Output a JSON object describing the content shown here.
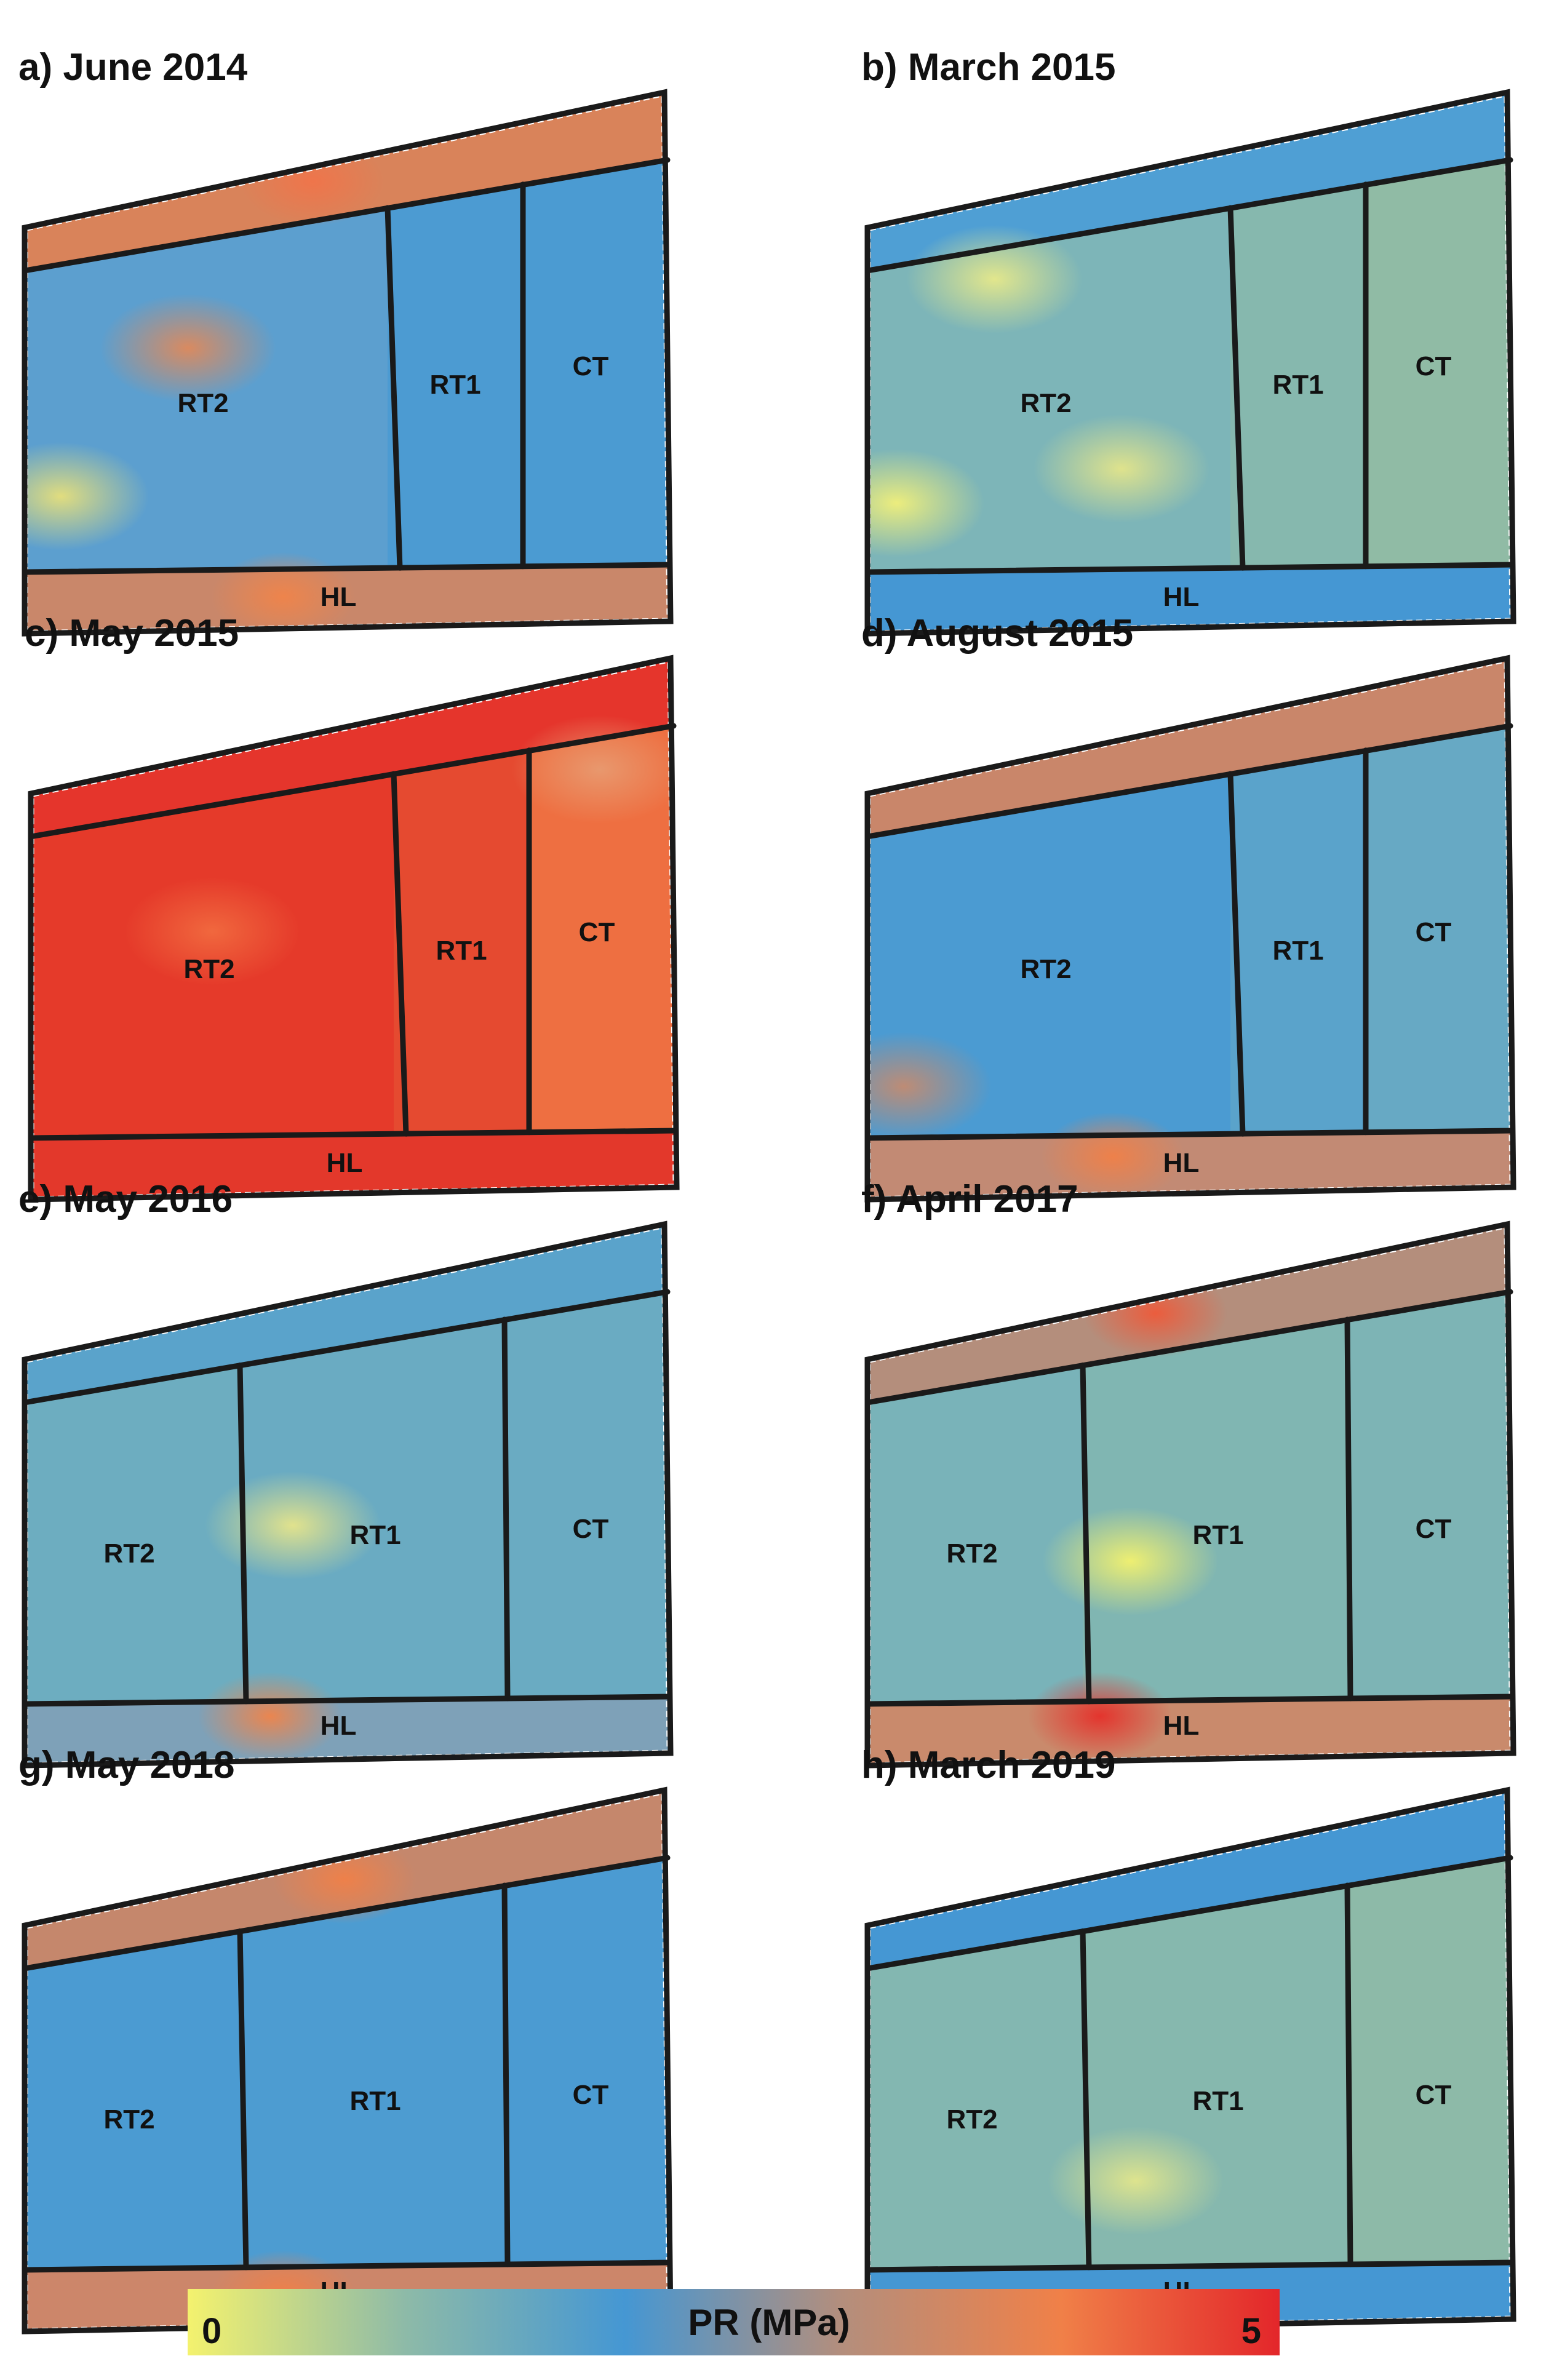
{
  "panels": [
    {
      "title": "a) June 2014",
      "zones": {
        "upper": "#d9835a",
        "RT2": "#5c9fcf",
        "RT1": "#4c9bd2",
        "CT": "#4b9bd2",
        "HL": "#c9876a"
      },
      "hotspots": [
        {
          "zone": "RT2",
          "u": 0.45,
          "v": 0.35,
          "color": "#e0895a"
        },
        {
          "zone": "RT2",
          "u": 0.1,
          "v": 0.78,
          "color": "#e8e07a"
        },
        {
          "zone": "upper",
          "u": 0.45,
          "v": 0.5,
          "color": "#f0744a"
        },
        {
          "zone": "HL",
          "u": 0.4,
          "v": 0.5,
          "color": "#f0844a"
        }
      ],
      "labels": {
        "RT2": "RT2",
        "RT1": "RT1",
        "CT": "CT",
        "HL": "HL"
      }
    },
    {
      "title": "b) March 2015",
      "zones": {
        "upper": "#4f9fd4",
        "RT2": "#7db5b8",
        "RT1": "#86b8ae",
        "CT": "#90bba5",
        "HL": "#4597d3"
      },
      "hotspots": [
        {
          "zone": "RT2",
          "u": 0.08,
          "v": 0.8,
          "color": "#f2f07a"
        },
        {
          "zone": "RT2",
          "u": 0.7,
          "v": 0.7,
          "color": "#e4e58a"
        },
        {
          "zone": "RT2",
          "u": 0.35,
          "v": 0.15,
          "color": "#e7e98a"
        }
      ],
      "labels": {
        "RT2": "RT2",
        "RT1": "RT1",
        "CT": "CT",
        "HL": "HL"
      }
    },
    {
      "title": "c) May 2015",
      "zones": {
        "upper": "#e5352c",
        "RT2": "#e53a2a",
        "RT1": "#e54a30",
        "CT": "#ee6f41",
        "HL": "#e3382b"
      },
      "hotspots": [
        {
          "zone": "RT2",
          "u": 0.5,
          "v": 0.4,
          "color": "#f16a3f"
        },
        {
          "zone": "CT",
          "u": 0.5,
          "v": 0.05,
          "color": "#e89a70"
        }
      ],
      "labels": {
        "RT2": "RT2",
        "RT1": "RT1",
        "CT": "CT",
        "HL": "HL"
      }
    },
    {
      "title": "d) August 2015",
      "zones": {
        "upper": "#c9866a",
        "RT2": "#4b9bd2",
        "RT1": "#5aa3cb",
        "CT": "#67a9c4",
        "HL": "#c28a74"
      },
      "hotspots": [
        {
          "zone": "RT2",
          "u": 0.1,
          "v": 0.85,
          "color": "#c48b70"
        },
        {
          "zone": "HL",
          "u": 0.38,
          "v": 0.4,
          "color": "#f08048"
        }
      ],
      "labels": {
        "RT2": "RT2",
        "RT1": "RT1",
        "CT": "CT",
        "HL": "HL"
      }
    },
    {
      "title": "e) May 2016",
      "zones": {
        "upper": "#5aa3cb",
        "RT2": "#6dadc0",
        "RT1": "#6aabc2",
        "CT": "#6aabc2",
        "HL": "#7ea1b8"
      },
      "hotspots": [
        {
          "zone": "RT1",
          "u": 0.2,
          "v": 0.5,
          "color": "#e7e58a"
        },
        {
          "zone": "HL",
          "u": 0.38,
          "v": 0.3,
          "color": "#f0844a"
        }
      ],
      "labels": {
        "RT2": "RT2",
        "RT1": "RT1",
        "CT": "CT",
        "HL": "HL"
      }
    },
    {
      "title": "f) April 2017",
      "zones": {
        "upper": "#b48e7c",
        "RT2": "#79b3b9",
        "RT1": "#80b6b2",
        "CT": "#7db4b5",
        "HL": "#c98a6c"
      },
      "hotspots": [
        {
          "zone": "RT1",
          "u": 0.18,
          "v": 0.6,
          "color": "#f4f26e"
        },
        {
          "zone": "upper",
          "u": 0.45,
          "v": 0.5,
          "color": "#ee5a3a"
        },
        {
          "zone": "HL",
          "u": 0.36,
          "v": 0.3,
          "color": "#e5302a"
        }
      ],
      "labels": {
        "RT2": "RT2",
        "RT1": "RT1",
        "CT": "CT",
        "HL": "HL"
      }
    },
    {
      "title": "g) May 2018",
      "zones": {
        "upper": "#c5876c",
        "RT2": "#4b9bd2",
        "RT1": "#4d9cd1",
        "CT": "#4b9bd2",
        "HL": "#cc866a"
      },
      "hotspots": [
        {
          "zone": "upper",
          "u": 0.5,
          "v": 0.5,
          "color": "#f08048"
        },
        {
          "zone": "HL",
          "u": 0.4,
          "v": 0.5,
          "color": "#f08048"
        }
      ],
      "labels": {
        "RT2": "RT2",
        "RT1": "RT1",
        "CT": "CT",
        "HL": "HL"
      }
    },
    {
      "title": "h) March 2019",
      "zones": {
        "upper": "#4597d3",
        "RT2": "#83b7b1",
        "RT1": "#86b8ae",
        "CT": "#8dbaa8",
        "HL": "#4597d3"
      },
      "hotspots": [
        {
          "zone": "RT1",
          "u": 0.2,
          "v": 0.75,
          "color": "#e2e68c"
        }
      ],
      "labels": {
        "RT2": "RT2",
        "RT1": "RT1",
        "CT": "CT",
        "HL": "HL"
      }
    }
  ],
  "legend": {
    "title": "PR (MPa)",
    "min_label": "0",
    "max_label": "5",
    "colors": [
      "#f4f26e",
      "#8dbaa8",
      "#4597d3",
      "#b48e7c",
      "#f08048",
      "#e3262a"
    ]
  }
}
